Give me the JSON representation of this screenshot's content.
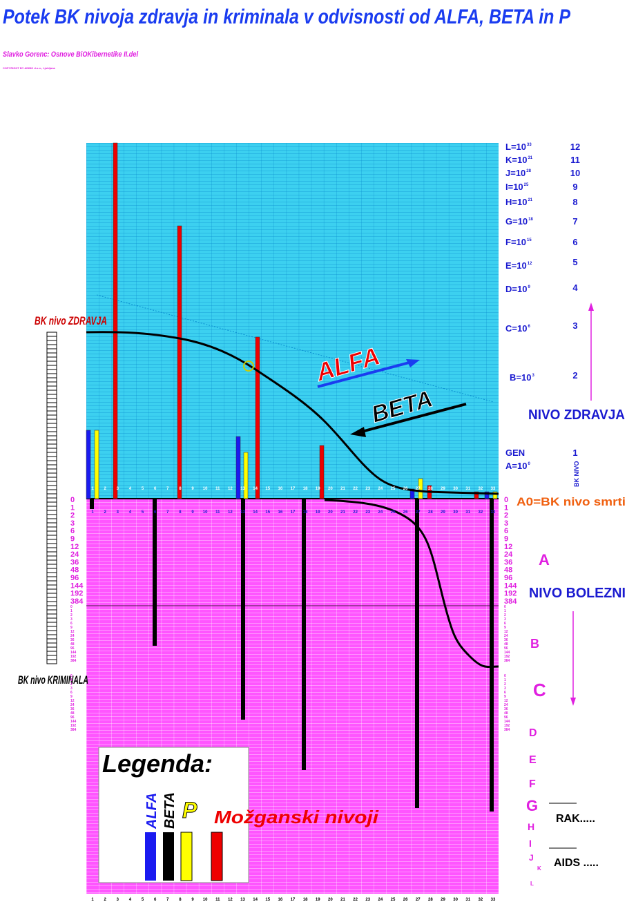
{
  "header": {
    "title": "Potek BK nivoja zdravja in kriminala v odvisnosti od ALFA, BETA in P",
    "subtitle": "Slavko Gorenc: Osnove BiOKibernetike II.del",
    "copyright": "COPYRIGHT BY ADIBO d.o.o., Ljubljana"
  },
  "upper_scale": [
    {
      "label": "L=10",
      "exponent": "33",
      "level": "12"
    },
    {
      "label": "K=10",
      "exponent": "31",
      "level": "11"
    },
    {
      "label": "J=10",
      "exponent": "28",
      "level": "10"
    },
    {
      "label": "I=10",
      "exponent": "25",
      "level": "9"
    },
    {
      "label": "H=10",
      "exponent": "21",
      "level": "8"
    },
    {
      "label": "G=10",
      "exponent": "18",
      "level": "7"
    },
    {
      "label": "F=10",
      "exponent": "15",
      "level": "6"
    },
    {
      "label": "E=10",
      "exponent": "12",
      "level": "5"
    },
    {
      "label": "D=10",
      "exponent": "9",
      "level": "4"
    },
    {
      "label": "C=10",
      "exponent": "6",
      "level": "3"
    },
    {
      "label": "B=10",
      "exponent": "3",
      "level": "2"
    },
    {
      "label": "GEN",
      "level": "1"
    },
    {
      "label": "A=10",
      "exponent": "0"
    }
  ],
  "right_labels": {
    "health": "NIVO ZDRAVJA",
    "bk_level": "BK NIVO",
    "death": "A0=BK nivo smrti",
    "disease": "NIVO BOLEZNI",
    "cancer": "RAK.....",
    "aids": "AIDS ....."
  },
  "disease_levels": [
    "A",
    "B",
    "C",
    "D",
    "E",
    "F",
    "G",
    "H",
    "I",
    "J",
    "K",
    "L"
  ],
  "lower_scale": [
    "0",
    "1",
    "2",
    "3",
    "6",
    "9",
    "12",
    "24",
    "36",
    "48",
    "96",
    "144",
    "192",
    "384"
  ],
  "left_labels": {
    "health": "BK nivo ZDRAVJA",
    "crime": "BK nivo KRIMINALA"
  },
  "columns": [
    "1",
    "2",
    "3",
    "4",
    "5",
    "6",
    "7",
    "8",
    "9",
    "10",
    "11",
    "12",
    "13",
    "14",
    "15",
    "16",
    "17",
    "18",
    "19",
    "20",
    "21",
    "22",
    "23",
    "24",
    "25",
    "26",
    "27",
    "28",
    "29",
    "30",
    "31",
    "32",
    "33"
  ],
  "arrows": {
    "alfa": "ALFA",
    "beta": "BETA"
  },
  "legend": {
    "title": "Legenda:",
    "alfa": "ALFA",
    "beta": "BETA",
    "p": "P",
    "brain": "Možganski nivoji"
  }
}
